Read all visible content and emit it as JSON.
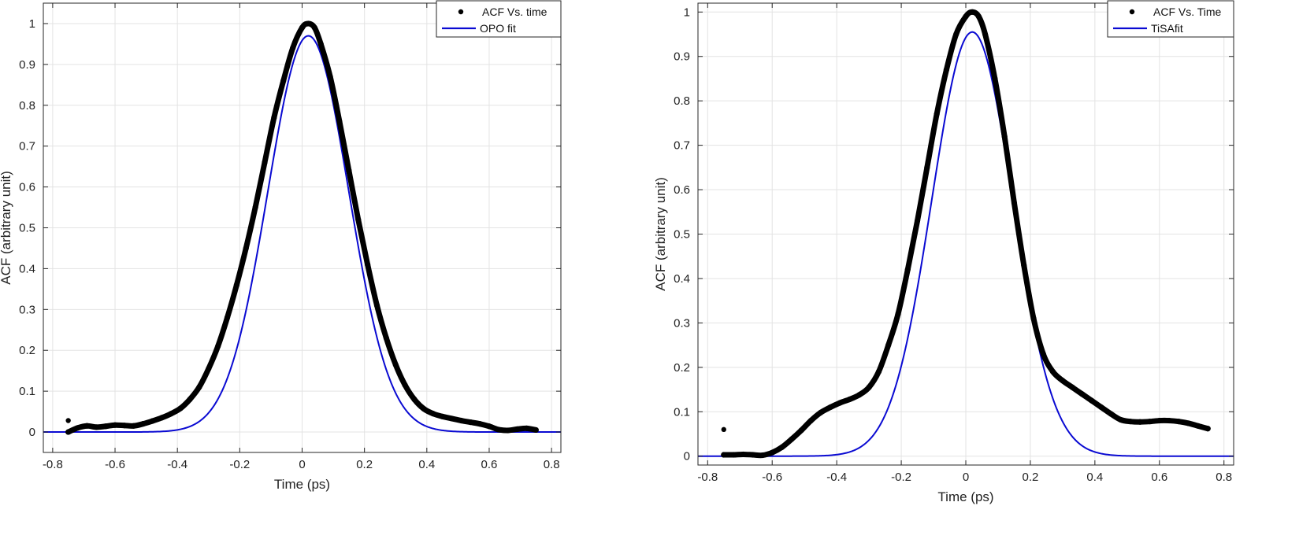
{
  "chart_data": [
    {
      "type": "scatter",
      "xlabel": "Time (ps)",
      "ylabel": "ACF (arbitrary unit)",
      "xlim": [
        -0.83,
        0.83
      ],
      "ylim": [
        -0.05,
        1.05
      ],
      "xticks": [
        -0.8,
        -0.6,
        -0.4,
        -0.2,
        0,
        0.2,
        0.4,
        0.6,
        0.8
      ],
      "xtick_labels": [
        "-0.8",
        "-0.6",
        "-0.4",
        "-0.2",
        "0",
        "0.2",
        "0.4",
        "0.6",
        "0.8"
      ],
      "yticks": [
        0,
        0.1,
        0.2,
        0.3,
        0.4,
        0.5,
        0.6,
        0.7,
        0.8,
        0.9,
        1
      ],
      "ytick_labels": [
        "0",
        "0.1",
        "0.2",
        "0.3",
        "0.4",
        "0.5",
        "0.6",
        "0.7",
        "0.8",
        "0.9",
        "1"
      ],
      "grid": true,
      "legend_position": "top-right",
      "series": [
        {
          "name": "ACF Vs. time",
          "style": "dots",
          "color": "#000000",
          "x": [
            -0.75,
            -0.72,
            -0.69,
            -0.66,
            -0.63,
            -0.6,
            -0.57,
            -0.54,
            -0.51,
            -0.48,
            -0.45,
            -0.42,
            -0.39,
            -0.36,
            -0.33,
            -0.3,
            -0.27,
            -0.24,
            -0.21,
            -0.18,
            -0.15,
            -0.12,
            -0.09,
            -0.06,
            -0.03,
            0.0,
            0.02,
            0.04,
            0.06,
            0.09,
            0.12,
            0.15,
            0.18,
            0.21,
            0.24,
            0.27,
            0.3,
            0.33,
            0.36,
            0.39,
            0.42,
            0.45,
            0.48,
            0.51,
            0.54,
            0.57,
            0.6,
            0.63,
            0.66,
            0.69,
            0.72,
            0.75
          ],
          "y": [
            0.0,
            0.01,
            0.015,
            0.012,
            0.014,
            0.017,
            0.016,
            0.015,
            0.02,
            0.027,
            0.035,
            0.045,
            0.058,
            0.08,
            0.11,
            0.155,
            0.21,
            0.28,
            0.36,
            0.45,
            0.55,
            0.66,
            0.77,
            0.86,
            0.94,
            0.99,
            1.0,
            0.99,
            0.95,
            0.87,
            0.76,
            0.64,
            0.52,
            0.41,
            0.31,
            0.23,
            0.165,
            0.115,
            0.08,
            0.057,
            0.045,
            0.038,
            0.033,
            0.028,
            0.024,
            0.02,
            0.014,
            0.006,
            0.004,
            0.007,
            0.009,
            0.005
          ]
        },
        {
          "name": "OPO fit",
          "style": "line",
          "color": "#0a0ad2",
          "model": "gaussian",
          "amplitude": 0.97,
          "center": 0.02,
          "sigma": 0.13,
          "x_range": [
            -0.83,
            0.83
          ]
        }
      ],
      "annotations": [
        {
          "text": "",
          "x": -0.75,
          "y": 0.028,
          "kind": "outlier-point"
        }
      ]
    },
    {
      "type": "scatter",
      "xlabel": "Time (ps)",
      "ylabel": "ACF (arbitrary unit)",
      "xlim": [
        -0.83,
        0.83
      ],
      "ylim": [
        -0.02,
        1.02
      ],
      "xticks": [
        -0.8,
        -0.6,
        -0.4,
        -0.2,
        0,
        0.2,
        0.4,
        0.6,
        0.8
      ],
      "xtick_labels": [
        "-0.8",
        "-0.6",
        "-0.4",
        "-0.2",
        "0",
        "0.2",
        "0.4",
        "0.6",
        "0.8"
      ],
      "yticks": [
        0,
        0.1,
        0.2,
        0.3,
        0.4,
        0.5,
        0.6,
        0.7,
        0.8,
        0.9,
        1
      ],
      "ytick_labels": [
        "0",
        "0.1",
        "0.2",
        "0.3",
        "0.4",
        "0.5",
        "0.6",
        "0.7",
        "0.8",
        "0.9",
        "1"
      ],
      "grid": true,
      "legend_position": "top-right",
      "series": [
        {
          "name": "ACF Vs. Time",
          "style": "dots",
          "color": "#000000",
          "x": [
            -0.75,
            -0.72,
            -0.69,
            -0.66,
            -0.63,
            -0.6,
            -0.57,
            -0.54,
            -0.51,
            -0.48,
            -0.45,
            -0.42,
            -0.39,
            -0.36,
            -0.33,
            -0.3,
            -0.27,
            -0.24,
            -0.21,
            -0.18,
            -0.15,
            -0.12,
            -0.09,
            -0.06,
            -0.03,
            0.0,
            0.02,
            0.04,
            0.06,
            0.09,
            0.12,
            0.15,
            0.18,
            0.21,
            0.24,
            0.27,
            0.3,
            0.33,
            0.36,
            0.39,
            0.42,
            0.45,
            0.48,
            0.51,
            0.54,
            0.57,
            0.6,
            0.63,
            0.66,
            0.69,
            0.72,
            0.75
          ],
          "y": [
            0.003,
            0.003,
            0.004,
            0.003,
            0.002,
            0.008,
            0.02,
            0.038,
            0.058,
            0.08,
            0.098,
            0.11,
            0.12,
            0.128,
            0.138,
            0.155,
            0.19,
            0.25,
            0.32,
            0.42,
            0.53,
            0.65,
            0.77,
            0.87,
            0.95,
            0.99,
            1.0,
            0.99,
            0.95,
            0.85,
            0.72,
            0.57,
            0.43,
            0.31,
            0.23,
            0.19,
            0.17,
            0.155,
            0.14,
            0.125,
            0.11,
            0.095,
            0.082,
            0.078,
            0.077,
            0.078,
            0.08,
            0.08,
            0.078,
            0.074,
            0.068,
            0.062
          ]
        },
        {
          "name": "TiSAfit",
          "style": "line",
          "color": "#0a0ad2",
          "model": "gaussian",
          "amplitude": 0.955,
          "center": 0.02,
          "sigma": 0.125,
          "x_range": [
            -0.83,
            0.83
          ]
        }
      ],
      "annotations": [
        {
          "text": "",
          "x": -0.75,
          "y": 0.06,
          "kind": "outlier-point"
        }
      ]
    }
  ]
}
